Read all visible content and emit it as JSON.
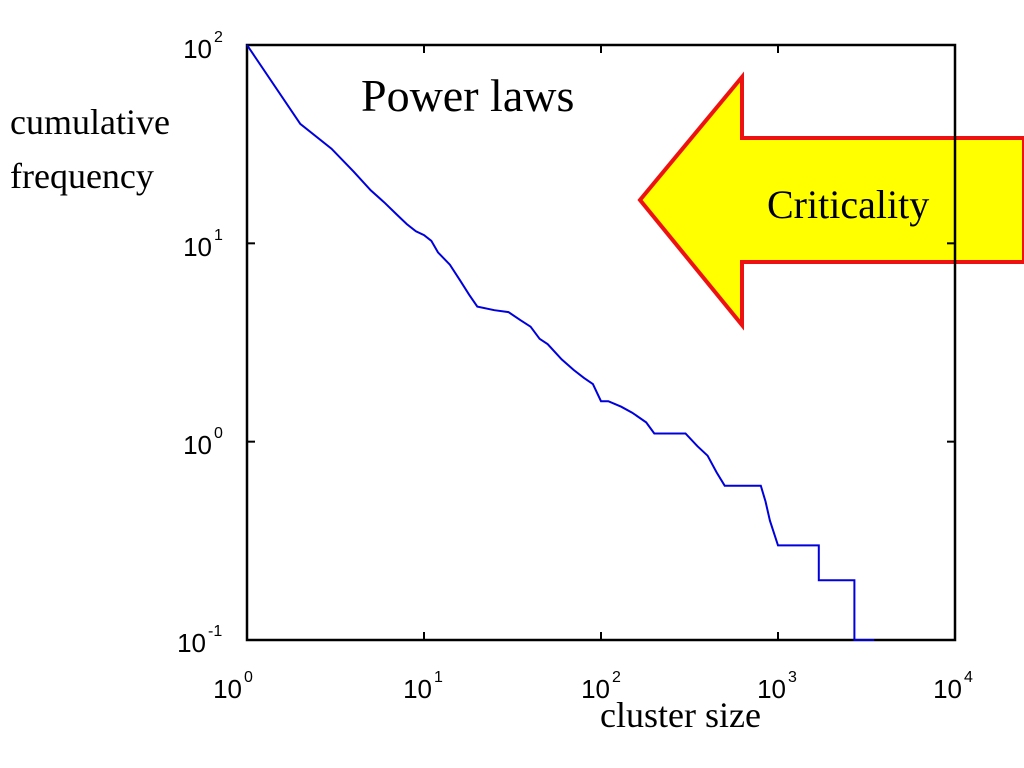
{
  "chart_data": {
    "type": "line",
    "title": "Power laws",
    "xlabel": "cluster size",
    "ylabel_lines": [
      "cumulative",
      "frequency"
    ],
    "x_scale": "log",
    "y_scale": "log",
    "xlim": [
      1,
      10000
    ],
    "ylim": [
      0.1,
      100
    ],
    "x_ticks": [
      {
        "base": "10",
        "exp": "0",
        "value": 1
      },
      {
        "base": "10",
        "exp": "1",
        "value": 10
      },
      {
        "base": "10",
        "exp": "2",
        "value": 100
      },
      {
        "base": "10",
        "exp": "3",
        "value": 1000
      },
      {
        "base": "10",
        "exp": "4",
        "value": 10000
      }
    ],
    "y_ticks": [
      {
        "base": "10",
        "exp": "2",
        "value": 100
      },
      {
        "base": "10",
        "exp": "1",
        "value": 10
      },
      {
        "base": "10",
        "exp": "0",
        "value": 1
      },
      {
        "base": "10",
        "exp": "-1",
        "value": 0.1
      }
    ],
    "grid": false,
    "series": [
      {
        "color": "#0000dd",
        "points": [
          [
            1,
            100
          ],
          [
            2,
            40
          ],
          [
            3,
            30
          ],
          [
            4,
            23
          ],
          [
            5,
            18.5
          ],
          [
            6,
            16
          ],
          [
            7,
            14
          ],
          [
            8,
            12.5
          ],
          [
            9,
            11.5
          ],
          [
            10,
            11
          ],
          [
            11,
            10.3
          ],
          [
            12,
            9
          ],
          [
            14,
            7.8
          ],
          [
            16,
            6.5
          ],
          [
            18,
            5.5
          ],
          [
            20,
            4.8
          ],
          [
            25,
            4.6
          ],
          [
            30,
            4.5
          ],
          [
            35,
            4.1
          ],
          [
            40,
            3.8
          ],
          [
            45,
            3.3
          ],
          [
            50,
            3.1
          ],
          [
            60,
            2.6
          ],
          [
            70,
            2.3
          ],
          [
            80,
            2.1
          ],
          [
            90,
            1.95
          ],
          [
            100,
            1.6
          ],
          [
            110,
            1.6
          ],
          [
            130,
            1.5
          ],
          [
            150,
            1.4
          ],
          [
            180,
            1.25
          ],
          [
            200,
            1.1
          ],
          [
            300,
            1.1
          ],
          [
            350,
            0.95
          ],
          [
            400,
            0.85
          ],
          [
            450,
            0.7
          ],
          [
            500,
            0.6
          ],
          [
            800,
            0.6
          ],
          [
            850,
            0.5
          ],
          [
            900,
            0.4
          ],
          [
            1000,
            0.3
          ],
          [
            1700,
            0.3
          ],
          [
            1700,
            0.2
          ],
          [
            2700,
            0.2
          ],
          [
            2700,
            0.1
          ],
          [
            3500,
            0.1
          ]
        ]
      }
    ]
  },
  "callout": {
    "label": "Criticality",
    "fill": "#ffff00",
    "stroke": "#ee1111"
  }
}
